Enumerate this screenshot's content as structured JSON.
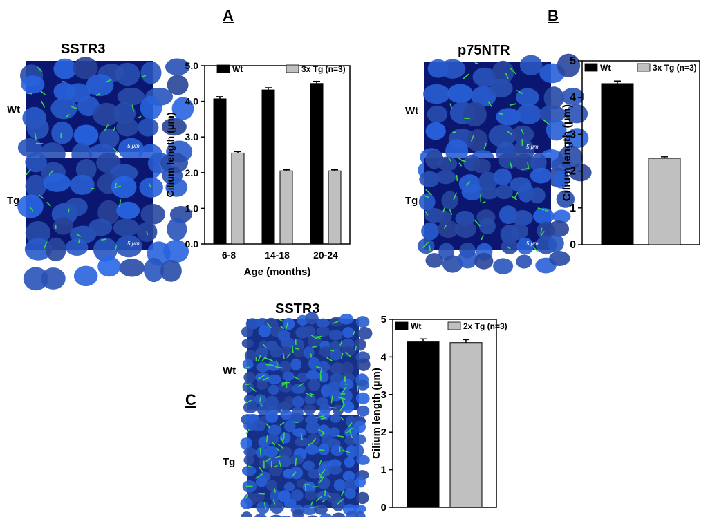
{
  "panel_labels": {
    "a": "A",
    "b": "B",
    "c": "C"
  },
  "panel_a": {
    "title": "SSTR3",
    "row_labels": [
      "Wt",
      "Tg"
    ],
    "scale_bar": "5 μm"
  },
  "panel_b": {
    "title": "p75NTR",
    "row_labels": [
      "Wt",
      "Tg"
    ],
    "scale_bar": "5 μm"
  },
  "panel_c": {
    "title": "SSTR3",
    "row_labels": [
      "Wt",
      "Tg"
    ]
  },
  "colors": {
    "wt": "#000000",
    "tg": "#c0c0c0",
    "nucleus_blue": "#1f3fd0",
    "cilium_green": "#33dd44"
  },
  "chart_data": [
    {
      "id": "chart-a",
      "type": "bar",
      "categories": [
        "6-8",
        "14-18",
        "20-24"
      ],
      "series": [
        {
          "name": "Wt",
          "values": [
            4.07,
            4.32,
            4.5
          ],
          "errors": [
            0.06,
            0.06,
            0.06
          ]
        },
        {
          "name": "3x Tg (n=3)",
          "values": [
            2.55,
            2.05,
            2.05
          ],
          "errors": [
            0.04,
            0.03,
            0.03
          ]
        }
      ],
      "xlabel": "Age (months)",
      "ylabel": "Cilium length (μm)",
      "ylim": [
        0,
        5
      ],
      "yticks": [
        "0.0",
        "1.0",
        "2.0",
        "3.0",
        "4.0",
        "5.0"
      ],
      "legend": "top"
    },
    {
      "id": "chart-b",
      "type": "bar",
      "categories": [
        ""
      ],
      "series": [
        {
          "name": "Wt",
          "values": [
            4.38
          ],
          "errors": [
            0.07
          ]
        },
        {
          "name": "3x Tg (n=3)",
          "values": [
            2.35
          ],
          "errors": [
            0.04
          ]
        }
      ],
      "xlabel": "",
      "ylabel": "Cilium length (μm)",
      "ylim": [
        0,
        5
      ],
      "yticks": [
        "0",
        "1",
        "2",
        "3",
        "4",
        "5"
      ],
      "legend": "top"
    },
    {
      "id": "chart-c",
      "type": "bar",
      "categories": [
        ""
      ],
      "series": [
        {
          "name": "Wt",
          "values": [
            4.4
          ],
          "errors": [
            0.08
          ]
        },
        {
          "name": "2x Tg (n=3)",
          "values": [
            4.38
          ],
          "errors": [
            0.08
          ]
        }
      ],
      "xlabel": "",
      "ylabel": "Cilium length (μm)",
      "ylim": [
        0,
        5
      ],
      "yticks": [
        "0",
        "1",
        "2",
        "3",
        "4",
        "5"
      ],
      "legend": "top"
    }
  ]
}
